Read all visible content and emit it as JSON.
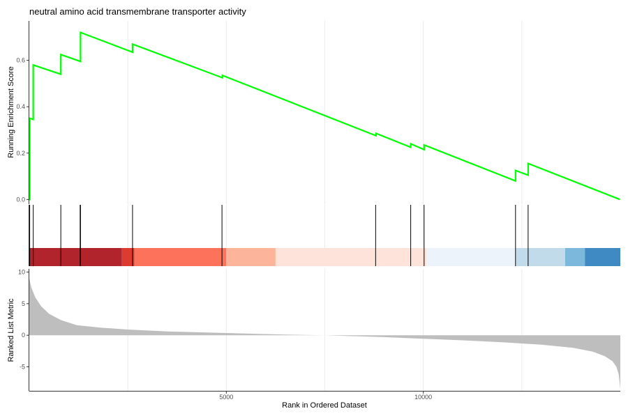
{
  "chart_data": {
    "type": "line",
    "title": "neutral amino acid transmembrane transporter activity",
    "xlabel": "Rank in Ordered Dataset",
    "xlim": [
      0,
      15000
    ],
    "x_ticks": [
      5000,
      10000
    ],
    "x_tick_labels": [
      "5000",
      "10000"
    ],
    "grid": true,
    "panels": {
      "enrichment": {
        "ylabel": "Running Enrichment Score",
        "ylim": [
          -0.02,
          0.77
        ],
        "y_ticks": [
          0.0,
          0.2,
          0.4,
          0.6
        ],
        "y_tick_labels": [
          "0.0",
          "0.2",
          "0.4",
          "0.6"
        ],
        "line_color": "#00ff00",
        "series": [
          {
            "x": [
              0,
              10,
              10,
              100,
              100,
              800,
              800,
              1300,
              1300,
              2620,
              2620,
              4900,
              4900,
              8800,
              8800,
              9680,
              9680,
              10020,
              10020,
              12340,
              12340,
              12660,
              12660,
              14990
            ],
            "y": [
              0.0,
              0.0,
              0.35,
              0.345,
              0.58,
              0.54,
              0.625,
              0.595,
              0.72,
              0.635,
              0.67,
              0.525,
              0.535,
              0.275,
              0.285,
              0.225,
              0.24,
              0.215,
              0.235,
              0.08,
              0.125,
              0.105,
              0.155,
              0.0
            ]
          }
        ]
      },
      "hits": {
        "positions": [
          10,
          100,
          800,
          1290,
          1300,
          2620,
          4890,
          8790,
          9680,
          10020,
          12340,
          12660
        ]
      },
      "color_band": {
        "segments": [
          {
            "start": 0,
            "end": 2350,
            "color": "#b2242b"
          },
          {
            "start": 2350,
            "end": 2670,
            "color": "#dd3a30"
          },
          {
            "start": 2670,
            "end": 5000,
            "color": "#fc725a"
          },
          {
            "start": 5000,
            "end": 6250,
            "color": "#fcb49a"
          },
          {
            "start": 6250,
            "end": 10080,
            "color": "#fde3d9"
          },
          {
            "start": 10080,
            "end": 12350,
            "color": "#edf3fb"
          },
          {
            "start": 12350,
            "end": 13600,
            "color": "#c2dbea"
          },
          {
            "start": 13600,
            "end": 14100,
            "color": "#7cb7dc"
          },
          {
            "start": 14100,
            "end": 15000,
            "color": "#3f8ac3"
          }
        ]
      },
      "ranked_metric": {
        "ylabel": "Ranked List Metric",
        "ylim": [
          -8.8,
          10.5
        ],
        "y_ticks": [
          -5,
          0,
          5,
          10
        ],
        "y_tick_labels": [
          "-5",
          "0",
          "5",
          "10"
        ],
        "fill_color": "#bebebe",
        "x": [
          0,
          50,
          150,
          300,
          500,
          800,
          1200,
          1800,
          2500,
          3500,
          5000,
          6500,
          7500,
          8000,
          9000,
          10000,
          11000,
          12000,
          13000,
          13800,
          14300,
          14600,
          14800,
          14900,
          14960,
          15000
        ],
        "y": [
          9.0,
          7.6,
          6.0,
          4.6,
          3.4,
          2.4,
          1.6,
          1.2,
          0.9,
          0.6,
          0.35,
          0.1,
          0.0,
          -0.1,
          -0.3,
          -0.55,
          -0.8,
          -1.1,
          -1.5,
          -2.0,
          -2.6,
          -3.3,
          -4.1,
          -5.0,
          -6.2,
          -8.5
        ]
      }
    }
  }
}
